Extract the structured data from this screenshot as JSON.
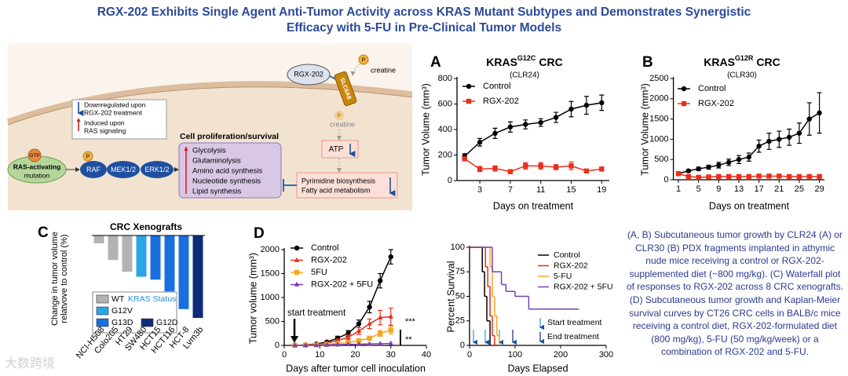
{
  "title": [
    "RGX-202 Exhibits Single Agent Anti-Tumor Activity across KRAS Mutant Subtypes and Demonstrates Synergistic",
    "Efficacy with 5-FU in Pre-Clinical Tumor Models"
  ],
  "diagram": {
    "drug": "RGX-202",
    "creatine_out": "creatine",
    "transporter": "SLC6A8",
    "creatine_in": "creatine",
    "atp": "ATP",
    "key": {
      "down": [
        "Downregulated upon",
        "RGX-202 treatment"
      ],
      "up": [
        "Induced upon",
        "RAS signaling"
      ]
    },
    "process_title": "Cell proliferation/survival",
    "processes": [
      "Glycolysis",
      "Glutaminolysis",
      "Amino acid synthesis",
      "Nucleotide synthesis",
      "Lipid synthesis"
    ],
    "gtp": "GTP",
    "ras": [
      "RAS-activating",
      "mutation"
    ],
    "phospho": "P",
    "kinases": [
      "RAF",
      "MEK1/2",
      "ERK1/2"
    ],
    "metabolism": [
      "Pyrimidine biosynthesis",
      "Fatty acid metabolism"
    ]
  },
  "chart_data": [
    {
      "type": "line",
      "panel": "A",
      "title": {
        "main": "KRAS",
        "sup": "G12C",
        "rest": "CRC"
      },
      "subtitle": "(CLR24)",
      "xlabel": "Days on treatment",
      "ylabel": "Tumor Volume (mm³)",
      "x": [
        1,
        3,
        5,
        7,
        9,
        11,
        13,
        15,
        17,
        19
      ],
      "series": [
        {
          "name": "Control",
          "color": "#000000",
          "marker": "circle",
          "values": [
            190,
            300,
            370,
            420,
            440,
            455,
            495,
            560,
            590,
            610
          ],
          "errors": [
            20,
            30,
            40,
            40,
            35,
            30,
            40,
            60,
            70,
            60
          ]
        },
        {
          "name": "RGX-202",
          "color": "#e8301c",
          "marker": "square",
          "values": [
            170,
            90,
            95,
            70,
            115,
            115,
            105,
            115,
            75,
            90
          ],
          "errors": [
            15,
            20,
            20,
            15,
            25,
            25,
            20,
            30,
            10,
            15
          ]
        }
      ],
      "xlim": [
        0,
        20
      ],
      "xticks": [
        3,
        7,
        11,
        15,
        19
      ],
      "ylim": [
        0,
        800
      ],
      "yticks": [
        0,
        200,
        400,
        600,
        800
      ]
    },
    {
      "type": "line",
      "panel": "B",
      "title": {
        "main": "KRAS",
        "sup": "G12R",
        "rest": "CRC"
      },
      "subtitle": "(CLR30)",
      "xlabel": "Days on treatment",
      "ylabel": "Tumor Volume (mm³)",
      "x": [
        1,
        3,
        5,
        7,
        9,
        11,
        13,
        15,
        17,
        19,
        21,
        23,
        25,
        27,
        29
      ],
      "series": [
        {
          "name": "Control",
          "color": "#000000",
          "marker": "circle",
          "values": [
            150,
            220,
            270,
            310,
            360,
            430,
            500,
            560,
            830,
            950,
            1000,
            1050,
            1150,
            1500,
            1650
          ],
          "errors": [
            20,
            30,
            40,
            50,
            70,
            80,
            100,
            100,
            150,
            200,
            200,
            200,
            250,
            400,
            500
          ]
        },
        {
          "name": "RGX-202",
          "color": "#e8301c",
          "marker": "square",
          "values": [
            150,
            80,
            60,
            70,
            80,
            80,
            80,
            80,
            90,
            90,
            90,
            80,
            80,
            80,
            80
          ],
          "errors": [
            20,
            20,
            15,
            15,
            20,
            20,
            20,
            20,
            25,
            25,
            25,
            20,
            20,
            20,
            20
          ]
        }
      ],
      "xlim": [
        0,
        30
      ],
      "xticks": [
        1,
        5,
        9,
        13,
        17,
        21,
        25,
        29
      ],
      "ylim": [
        0,
        2500
      ],
      "yticks": [
        0,
        500,
        1000,
        1500,
        2000,
        2500
      ]
    },
    {
      "type": "waterfall",
      "panel": "C",
      "title": "CRC Xenografts",
      "ylabel": [
        "Change in tumor volume",
        "relatvove to control (%)"
      ],
      "categories": [
        "NCI-H508",
        "Colo205",
        "HT29",
        "SW480",
        "HCT15",
        "HCT116",
        "HCT-8",
        "Lvm3b"
      ],
      "values": [
        -8,
        -25,
        -37,
        -42,
        -45,
        -57,
        -75,
        -84
      ],
      "colors": [
        "#b3b3b3",
        "#b3b3b3",
        "#b3b3b3",
        "#2aa6e6",
        "#1a6fe0",
        "#1a6fe0",
        "#1a6fe0",
        "#0d2b7a"
      ],
      "ylim": [
        -100,
        0
      ],
      "legend_title": "KRAS Status",
      "legend": [
        {
          "name": "WT",
          "color": "#b3b3b3"
        },
        {
          "name": "G12V",
          "color": "#2aa6e6"
        },
        {
          "name": "G13D",
          "color": "#1a6fe0"
        },
        {
          "name": "G12D",
          "color": "#0d2b7a"
        }
      ]
    },
    {
      "type": "line",
      "panel": "D",
      "xlabel": "Days after tumor cell inoculation",
      "ylabel": "Tumor volume (mm³)",
      "x": [
        3,
        6,
        9,
        12,
        15,
        18,
        21,
        24,
        27,
        30
      ],
      "series": [
        {
          "name": "Control",
          "color": "#000000",
          "marker": "circle",
          "values": [
            0,
            10,
            30,
            70,
            150,
            250,
            450,
            800,
            1350,
            1850
          ],
          "errors": [
            0,
            5,
            10,
            20,
            40,
            60,
            80,
            120,
            150,
            150
          ]
        },
        {
          "name": "RGX-202",
          "color": "#e8301c",
          "marker": "triangle",
          "values": [
            0,
            10,
            20,
            50,
            100,
            170,
            300,
            450,
            580,
            600
          ],
          "errors": [
            0,
            5,
            10,
            15,
            30,
            50,
            70,
            100,
            150,
            180
          ]
        },
        {
          "name": "5FU",
          "color": "#f5a623",
          "marker": "square",
          "values": [
            0,
            5,
            10,
            20,
            40,
            60,
            100,
            150,
            250,
            320
          ],
          "errors": [
            0,
            3,
            5,
            10,
            15,
            20,
            30,
            40,
            60,
            80
          ]
        },
        {
          "name": "RGX-202 + 5FU",
          "color": "#7b3fb0",
          "marker": "triangle",
          "values": [
            0,
            0,
            5,
            10,
            15,
            20,
            25,
            30,
            35,
            40
          ]
        }
      ],
      "xlim": [
        0,
        40
      ],
      "xticks": [
        0,
        10,
        20,
        30,
        40
      ],
      "ylim": [
        0,
        2000
      ],
      "yticks": [
        0,
        500,
        1000,
        1500,
        2000
      ],
      "annotations": {
        "start": "start treatment",
        "sig1": "***",
        "sig2": "**"
      }
    },
    {
      "type": "survival",
      "xlabel": "Days Elapsed",
      "ylabel": "Percent Survival",
      "series": [
        {
          "name": "Control",
          "color": "#000000",
          "x": [
            0,
            28,
            33,
            38,
            45
          ],
          "values": [
            100,
            75,
            50,
            25,
            0
          ]
        },
        {
          "name": "RGX-202",
          "color": "#e8301c",
          "x": [
            0,
            35,
            40,
            45,
            50,
            55
          ],
          "values": [
            100,
            80,
            60,
            30,
            10,
            0
          ]
        },
        {
          "name": "5-FU",
          "color": "#f5a623",
          "x": [
            0,
            45,
            50,
            55,
            60,
            65
          ],
          "values": [
            100,
            80,
            50,
            30,
            10,
            0
          ]
        },
        {
          "name": "RGX-202 + 5FU",
          "color": "#7b3fb0",
          "x": [
            0,
            50,
            70,
            80,
            100,
            130,
            240
          ],
          "values": [
            100,
            75,
            62,
            55,
            50,
            37,
            37
          ]
        }
      ],
      "xlim": [
        0,
        300
      ],
      "xticks": [
        0,
        100,
        200,
        300
      ],
      "ylim": [
        0,
        100
      ],
      "yticks": [
        0,
        25,
        50,
        75,
        100
      ],
      "annotations": {
        "start": "Start treatment",
        "end": "End treatment"
      }
    }
  ],
  "caption": "(A, B) Subcutaneous tumor growth by CLR24 (A) or CLR30 (B) PDX fragments implanted in athymic nude mice receiving a control or RGX-202-supplemented diet (~800 mg/kg). (C) Waterfall plot of responses to RGX-202 across 8 CRC xenografts. (D) Subcutaneous tumor growth and Kaplan-Meier survival curves by CT26 CRC cells in BALB/c mice receiving a control diet, RGX-202-formulated diet (800 mg/kg), 5-FU (50 mg/kg/week) or a combination of RGX-202 and 5-FU.",
  "watermark": "大数跨境"
}
